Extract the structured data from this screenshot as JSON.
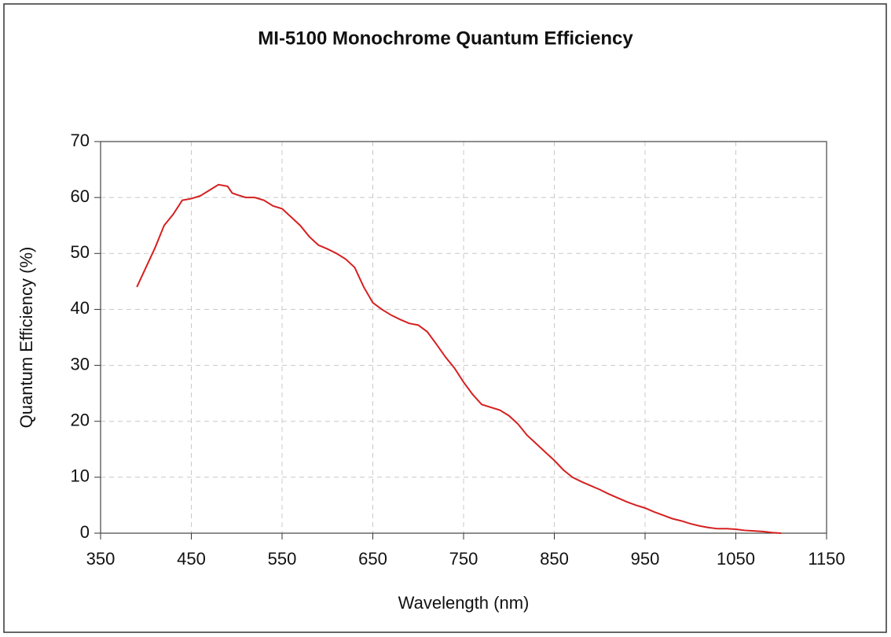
{
  "chart_data": {
    "type": "line",
    "title": "MI-5100 Monochrome Quantum Efficiency",
    "xlabel": "Wavelength (nm)",
    "ylabel": "Quantum Efficiency (%)",
    "xlim": [
      350,
      1150
    ],
    "xticks": [
      350,
      450,
      550,
      650,
      750,
      850,
      950,
      1050,
      1150
    ],
    "ylim": [
      0,
      70
    ],
    "yticks": [
      0,
      10,
      20,
      30,
      40,
      50,
      60,
      70
    ],
    "grid": true,
    "series": [
      {
        "color": "#d62020",
        "x": [
          390,
          400,
          410,
          420,
          430,
          440,
          450,
          460,
          470,
          480,
          490,
          495,
          500,
          510,
          520,
          530,
          540,
          550,
          560,
          570,
          580,
          590,
          600,
          610,
          620,
          630,
          640,
          650,
          660,
          670,
          680,
          690,
          700,
          710,
          720,
          730,
          740,
          750,
          760,
          770,
          780,
          790,
          800,
          810,
          820,
          830,
          840,
          850,
          860,
          870,
          880,
          890,
          900,
          910,
          920,
          930,
          940,
          950,
          960,
          970,
          980,
          990,
          1000,
          1010,
          1020,
          1030,
          1040,
          1050,
          1060,
          1070,
          1080,
          1090,
          1100
        ],
        "values": [
          44,
          47.5,
          51,
          55,
          57,
          59.5,
          59.8,
          60.3,
          61.3,
          62.3,
          62,
          60.8,
          60.5,
          60,
          60,
          59.5,
          58.5,
          58,
          56.5,
          55,
          53,
          51.5,
          50.8,
          50,
          49,
          47.5,
          44,
          41.2,
          40,
          39,
          38.2,
          37.5,
          37.2,
          36,
          33.8,
          31.5,
          29.5,
          27,
          24.8,
          23,
          22.5,
          22,
          21,
          19.5,
          17.5,
          16,
          14.5,
          13,
          11.3,
          10,
          9.2,
          8.5,
          7.8,
          7,
          6.3,
          5.6,
          5,
          4.5,
          3.8,
          3.2,
          2.6,
          2.2,
          1.7,
          1.3,
          1,
          0.8,
          0.8,
          0.7,
          0.5,
          0.4,
          0.3,
          0.1,
          0
        ]
      }
    ]
  }
}
